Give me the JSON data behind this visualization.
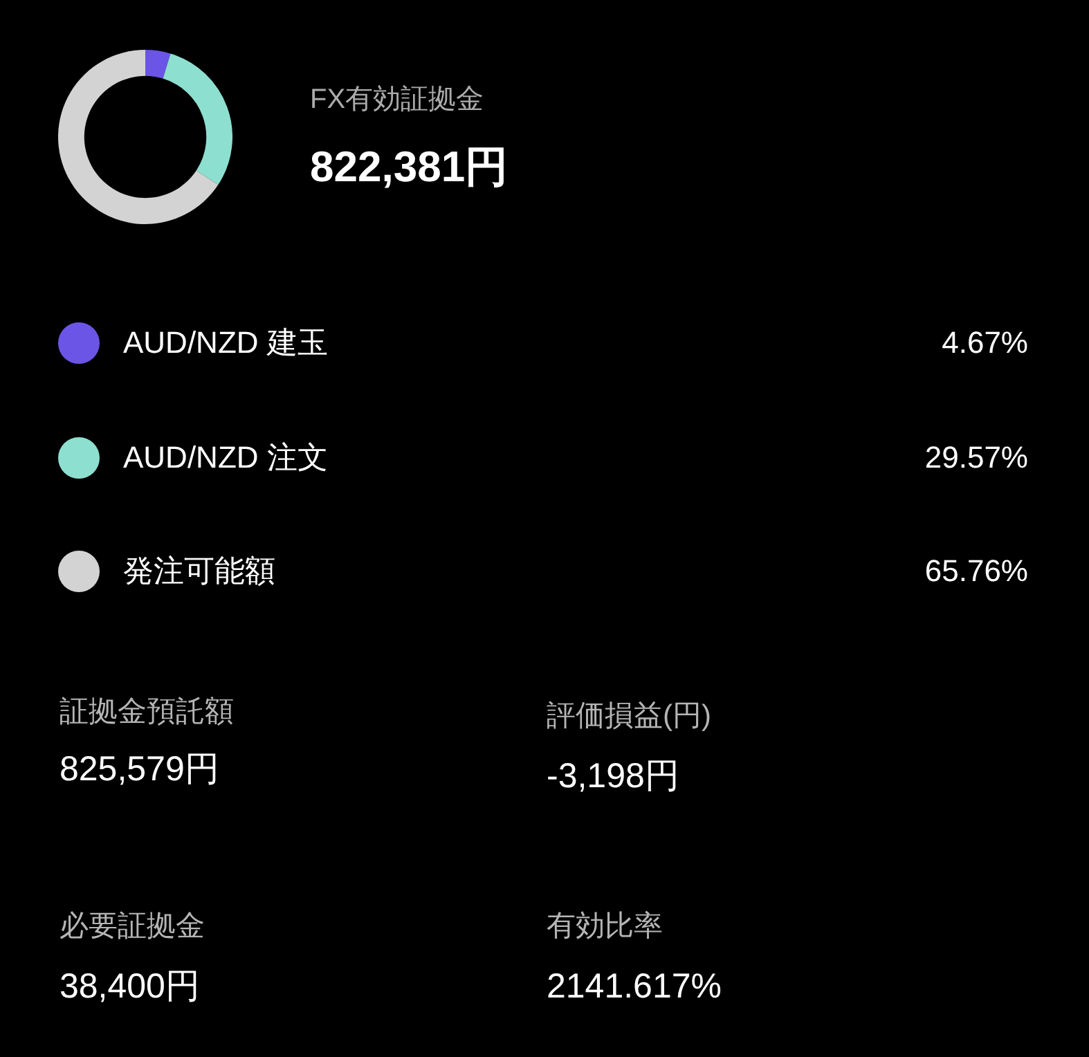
{
  "chart_data": {
    "type": "donut",
    "title": "FX有効証拠金",
    "subtitle": "822,381円",
    "categories": [
      "AUD/NZD 建玉",
      "AUD/NZD 注文",
      "発注可能額"
    ],
    "values": [
      4.67,
      29.57,
      65.76
    ],
    "value_labels": [
      "4.67%",
      "29.57%",
      "65.76%"
    ],
    "colors": [
      "#6b55e6",
      "#8ddfcf",
      "#d3d3d3"
    ],
    "legend": "bottom",
    "annotations": [
      "証拠金預託額",
      "825,579円",
      "評価損益(円)",
      "-3,198円",
      "必要証拠金",
      "38,400円",
      "有効比率",
      "2141.617%"
    ]
  }
}
